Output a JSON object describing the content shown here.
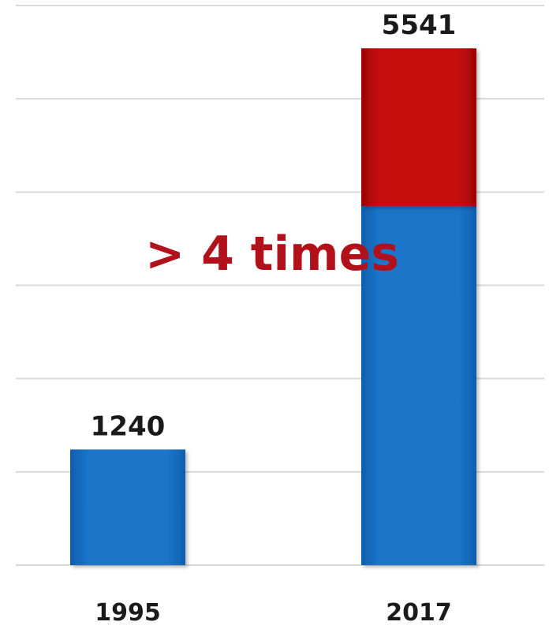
{
  "chart_data": {
    "type": "bar",
    "stacked": true,
    "categories": [
      "1995",
      "2017"
    ],
    "series": [
      {
        "color": "#1a74c9",
        "values": [
          1240,
          3850
        ]
      },
      {
        "color": "#c40a0a",
        "values": [
          0,
          1691
        ]
      }
    ],
    "totals": [
      "1240",
      "5541"
    ],
    "annotation": "> 4 times",
    "annotation_color": "#b0111a",
    "ylim": [
      0,
      6000
    ],
    "grid": true
  }
}
